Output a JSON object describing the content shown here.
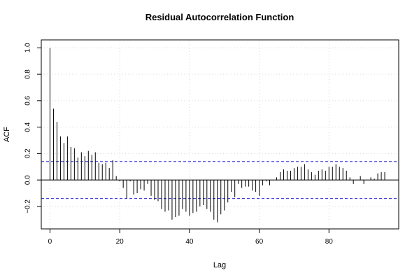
{
  "chart_data": {
    "type": "bar",
    "title": "Residual Autocorrelation Function",
    "xlabel": "Lag",
    "ylabel": "ACF",
    "xlim": [
      -2.5,
      100
    ],
    "ylim": [
      -0.37,
      1.06
    ],
    "x_ticks": [
      0,
      20,
      40,
      60,
      80
    ],
    "y_ticks": [
      -0.2,
      0.0,
      0.2,
      0.4,
      0.6,
      0.8,
      1.0
    ],
    "y_tick_labels": [
      "−0.2",
      "0.0",
      "0.2",
      "0.4",
      "0.6",
      "0.8",
      "1.0"
    ],
    "grid": true,
    "confidence_bound": 0.14,
    "lags": [
      0,
      1,
      2,
      3,
      4,
      5,
      6,
      7,
      8,
      9,
      10,
      11,
      12,
      13,
      14,
      15,
      16,
      17,
      18,
      19,
      20,
      21,
      22,
      23,
      24,
      25,
      26,
      27,
      28,
      29,
      30,
      31,
      32,
      33,
      34,
      35,
      36,
      37,
      38,
      39,
      40,
      41,
      42,
      43,
      44,
      45,
      46,
      47,
      48,
      49,
      50,
      51,
      52,
      53,
      54,
      55,
      56,
      57,
      58,
      59,
      60,
      61,
      62,
      63,
      64,
      65,
      66,
      67,
      68,
      69,
      70,
      71,
      72,
      73,
      74,
      75,
      76,
      77,
      78,
      79,
      80,
      81,
      82,
      83,
      84,
      85,
      86,
      87,
      88,
      89,
      90,
      91,
      92,
      93,
      94,
      95,
      96
    ],
    "values": [
      1.0,
      0.54,
      0.44,
      0.33,
      0.28,
      0.33,
      0.25,
      0.24,
      0.17,
      0.21,
      0.18,
      0.22,
      0.19,
      0.21,
      0.13,
      0.12,
      0.13,
      0.09,
      0.15,
      0.03,
      -0.01,
      -0.06,
      -0.14,
      -0.01,
      -0.11,
      -0.1,
      -0.07,
      -0.08,
      -0.03,
      -0.12,
      -0.15,
      -0.16,
      -0.22,
      -0.24,
      -0.23,
      -0.3,
      -0.28,
      -0.27,
      -0.22,
      -0.24,
      -0.27,
      -0.25,
      -0.24,
      -0.2,
      -0.19,
      -0.22,
      -0.24,
      -0.3,
      -0.32,
      -0.26,
      -0.23,
      -0.17,
      -0.09,
      -0.13,
      -0.03,
      -0.06,
      -0.05,
      -0.05,
      -0.08,
      -0.09,
      -0.12,
      -0.04,
      -0.01,
      -0.04,
      0.0,
      0.02,
      0.06,
      0.08,
      0.07,
      0.07,
      0.09,
      0.1,
      0.1,
      0.12,
      0.08,
      0.06,
      0.04,
      0.07,
      0.08,
      0.07,
      0.1,
      0.1,
      0.12,
      0.1,
      0.09,
      0.07,
      0.02,
      -0.03,
      0.0,
      0.03,
      -0.03,
      0.0,
      0.02,
      0.01,
      0.05,
      0.06,
      0.06
    ]
  }
}
